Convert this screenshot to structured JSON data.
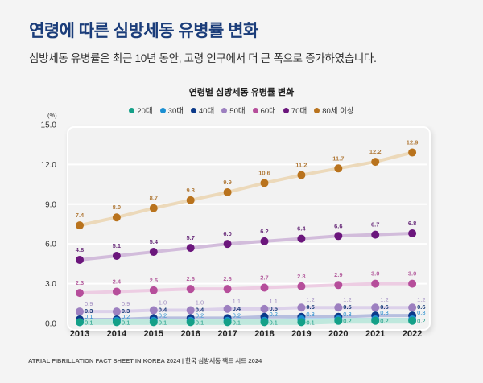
{
  "header": {
    "title": "연령에 따른 심방세동 유병률 변화",
    "subtitle": "심방세동 유병률은 최근 10년 동안, 고령 인구에서 더 큰 폭으로 증가하였습니다."
  },
  "footer": {
    "text": "ATRIAL FIBRILLATION FACT SHEET IN KOREA 2024 | 한국 심방세동 팩트 시트 2024"
  },
  "chart_data": {
    "type": "line",
    "title": "연령별 심방세동 유병률 변화",
    "xlabel": "",
    "ylabel": "(%)",
    "ylim": [
      0,
      15
    ],
    "grid": true,
    "legend_position": "top-center",
    "x": [
      "2013",
      "2014",
      "2015",
      "2016",
      "2017",
      "2018",
      "2019",
      "2020",
      "2021",
      "2022"
    ],
    "ytick_values": [
      0,
      3,
      6,
      9,
      12,
      15
    ],
    "ytick_labels": [
      "0.0",
      "3.0",
      "6.0",
      "9.0",
      "12.0",
      "15.0"
    ],
    "series": [
      {
        "name": "20대",
        "color": "#14a088",
        "line_color": "#bfe8dd",
        "label_color": "#1a9c85",
        "values": [
          0.1,
          0.1,
          0.1,
          0.1,
          0.1,
          0.1,
          0.1,
          0.2,
          0.2,
          0.2
        ],
        "value_labels": [
          "0.1",
          "0.1",
          "0.1",
          "0.1",
          "0.1",
          "0.1",
          "0.1",
          "0.2",
          "0.2",
          "0.2"
        ]
      },
      {
        "name": "30대",
        "color": "#1b8fd2",
        "line_color": "#b3d7ef",
        "label_color": "#2a8fcf",
        "values": [
          0.1,
          0.2,
          0.2,
          0.2,
          0.2,
          0.2,
          0.3,
          0.3,
          0.3,
          0.3
        ],
        "value_labels": [
          "0.1",
          "0.2",
          "0.2",
          "0.2",
          "0.2",
          "0.2",
          "0.3",
          "0.3",
          "0.3",
          "0.3"
        ]
      },
      {
        "name": "40대",
        "color": "#0c3a8a",
        "line_color": "#b7bfdf",
        "label_color": "#1d3f7a",
        "values": [
          0.3,
          0.3,
          0.4,
          0.4,
          0.4,
          0.5,
          0.5,
          0.5,
          0.6,
          0.6
        ],
        "value_labels": [
          "0.3",
          "0.3",
          "0.4",
          "0.4",
          "0.4",
          "0.5",
          "0.5",
          "0.5",
          "0.6",
          "0.6"
        ]
      },
      {
        "name": "50대",
        "color": "#9d80c0",
        "line_color": "#dcd1ea",
        "label_color": "#a18dc2",
        "values": [
          0.9,
          0.9,
          1.0,
          1.0,
          1.1,
          1.1,
          1.2,
          1.2,
          1.2,
          1.2
        ],
        "value_labels": [
          "0.9",
          "0.9",
          "1.0",
          "1.0",
          "1.1",
          "1.1",
          "1.2",
          "1.2",
          "1.2",
          "1.2"
        ]
      },
      {
        "name": "60대",
        "color": "#b64e9b",
        "line_color": "#edcde3",
        "label_color": "#b5609f",
        "values": [
          2.3,
          2.4,
          2.5,
          2.6,
          2.6,
          2.7,
          2.8,
          2.9,
          3.0,
          3.0
        ],
        "value_labels": [
          "2.3",
          "2.4",
          "2.5",
          "2.6",
          "2.6",
          "2.7",
          "2.8",
          "2.9",
          "3.0",
          "3.0"
        ]
      },
      {
        "name": "70대",
        "color": "#6b167c",
        "line_color": "#d2bcdb",
        "label_color": "#6b2f7c",
        "values": [
          4.8,
          5.1,
          5.4,
          5.7,
          6.0,
          6.2,
          6.4,
          6.6,
          6.7,
          6.8
        ],
        "value_labels": [
          "4.8",
          "5.1",
          "5.4",
          "5.7",
          "6.0",
          "6.2",
          "6.4",
          "6.6",
          "6.7",
          "6.8"
        ]
      },
      {
        "name": "80세 이상",
        "color": "#b9731d",
        "line_color": "#ecd9ba",
        "label_color": "#b27c3c",
        "values": [
          7.4,
          8.0,
          8.7,
          9.3,
          9.9,
          10.6,
          11.2,
          11.7,
          12.2,
          12.9
        ],
        "value_labels": [
          "7.4",
          "8.0",
          "8.7",
          "9.3",
          "9.9",
          "10.6",
          "11.2",
          "11.7",
          "12.2",
          "12.9"
        ]
      }
    ]
  }
}
